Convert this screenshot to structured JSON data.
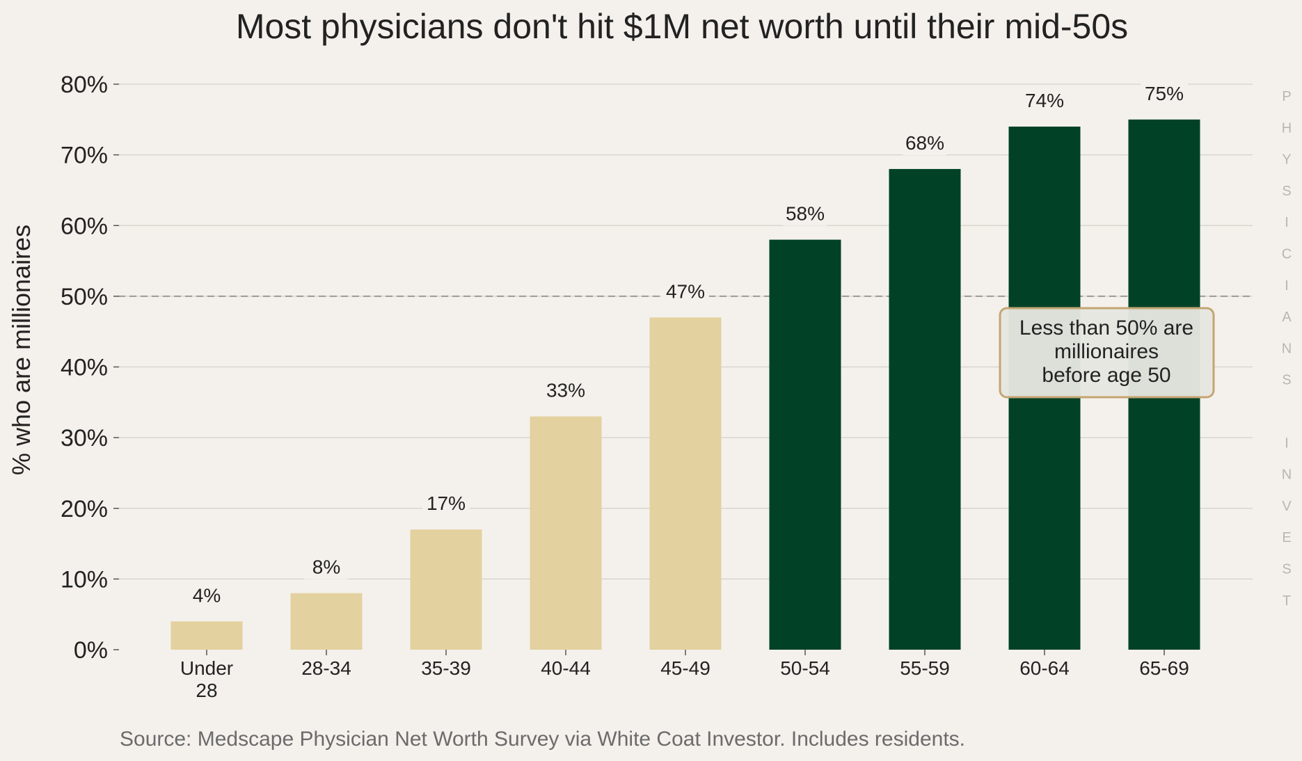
{
  "chart_data": {
    "type": "bar",
    "title": "Most physicians don't hit $1M net worth until their mid-50s",
    "ylabel": "% who are millionaires",
    "xlabel": "",
    "categories": [
      [
        "Under",
        "28"
      ],
      [
        "28-34"
      ],
      [
        "35-39"
      ],
      [
        "40-44"
      ],
      [
        "45-49"
      ],
      [
        "50-54"
      ],
      [
        "55-59"
      ],
      [
        "60-64"
      ],
      [
        "65-69"
      ]
    ],
    "values": [
      4,
      8,
      17,
      33,
      47,
      58,
      68,
      74,
      75
    ],
    "value_labels": [
      "4%",
      "8%",
      "17%",
      "33%",
      "47%",
      "58%",
      "68%",
      "74%",
      "75%"
    ],
    "bar_colors": [
      "#e3d19f",
      "#e3d19f",
      "#e3d19f",
      "#e3d19f",
      "#e3d19f",
      "#014226",
      "#014226",
      "#014226",
      "#014226"
    ],
    "ylim": [
      0,
      80
    ],
    "yticks": [
      0,
      10,
      20,
      30,
      40,
      50,
      60,
      70,
      80
    ],
    "ytick_labels": [
      "0%",
      "10%",
      "20%",
      "30%",
      "40%",
      "50%",
      "60%",
      "70%",
      "80%"
    ],
    "grid": true,
    "reference_line": {
      "value": 50,
      "style": "dashed",
      "color": "#999999"
    },
    "annotation": {
      "lines": [
        "Less than 50% are",
        "millionaires",
        "before age 50"
      ],
      "border_color": "#c4a572"
    },
    "source": "Source: Medscape Physician Net Worth Survey via White Coat Investor. Includes residents.",
    "watermark": "PHYSICIANS INVEST"
  }
}
